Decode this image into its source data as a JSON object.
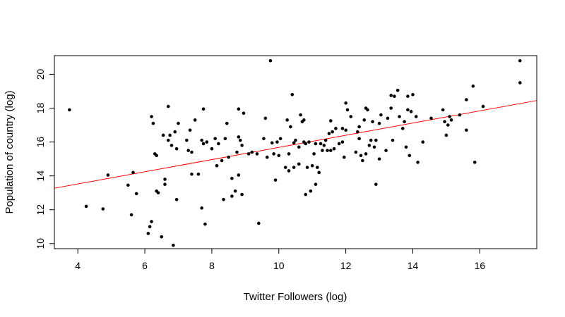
{
  "chart_data": {
    "type": "scatter",
    "title": "",
    "xlabel": "Twitter Followers (log)",
    "ylabel": "Population of country (log)",
    "xlim": [
      3.3,
      17.7
    ],
    "ylim": [
      9.7,
      21.1
    ],
    "xticks": [
      4,
      6,
      8,
      10,
      12,
      14,
      16
    ],
    "yticks": [
      10,
      12,
      14,
      16,
      18,
      20
    ],
    "grid": false,
    "point_color": "#000000",
    "line_color": "#ff0000",
    "regression_line": {
      "x": [
        3.3,
        17.7
      ],
      "y": [
        13.27,
        18.45
      ]
    },
    "series": [
      {
        "points": [
          [
            3.75,
            17.9
          ],
          [
            4.25,
            12.2
          ],
          [
            4.75,
            12.05
          ],
          [
            4.9,
            14.05
          ],
          [
            5.5,
            13.45
          ],
          [
            5.6,
            11.7
          ],
          [
            5.65,
            14.2
          ],
          [
            5.75,
            12.95
          ],
          [
            6.1,
            10.6
          ],
          [
            6.15,
            11.0
          ],
          [
            6.2,
            17.5
          ],
          [
            6.2,
            11.3
          ],
          [
            6.25,
            17.1
          ],
          [
            6.3,
            15.3
          ],
          [
            6.35,
            15.2
          ],
          [
            6.35,
            13.1
          ],
          [
            6.4,
            13.0
          ],
          [
            6.5,
            10.4
          ],
          [
            6.55,
            16.4
          ],
          [
            6.6,
            13.8
          ],
          [
            6.6,
            13.5
          ],
          [
            6.7,
            18.1
          ],
          [
            6.7,
            16.1
          ],
          [
            6.75,
            16.4
          ],
          [
            6.8,
            15.8
          ],
          [
            6.85,
            9.9
          ],
          [
            6.9,
            16.6
          ],
          [
            6.95,
            15.6
          ],
          [
            6.95,
            12.6
          ],
          [
            7.0,
            17.1
          ],
          [
            7.25,
            16.1
          ],
          [
            7.3,
            15.5
          ],
          [
            7.35,
            16.7
          ],
          [
            7.4,
            15.4
          ],
          [
            7.4,
            14.1
          ],
          [
            7.5,
            17.3
          ],
          [
            7.6,
            14.1
          ],
          [
            7.7,
            16.1
          ],
          [
            7.7,
            12.1
          ],
          [
            7.75,
            15.9
          ],
          [
            7.75,
            17.95
          ],
          [
            7.8,
            11.15
          ],
          [
            7.85,
            16.0
          ],
          [
            8.0,
            15.6
          ],
          [
            8.1,
            16.2
          ],
          [
            8.15,
            14.6
          ],
          [
            8.2,
            15.9
          ],
          [
            8.3,
            14.9
          ],
          [
            8.35,
            12.6
          ],
          [
            8.4,
            16.2
          ],
          [
            8.45,
            17.1
          ],
          [
            8.5,
            15.1
          ],
          [
            8.6,
            13.85
          ],
          [
            8.6,
            12.8
          ],
          [
            8.7,
            13.1
          ],
          [
            8.75,
            15.4
          ],
          [
            8.8,
            14.05
          ],
          [
            8.8,
            16.3
          ],
          [
            8.8,
            17.95
          ],
          [
            8.85,
            16.1
          ],
          [
            8.9,
            12.9
          ],
          [
            8.9,
            15.8
          ],
          [
            8.95,
            17.7
          ],
          [
            9.1,
            15.3
          ],
          [
            9.2,
            15.4
          ],
          [
            9.35,
            15.3
          ],
          [
            9.4,
            11.2
          ],
          [
            9.55,
            16.2
          ],
          [
            9.6,
            17.4
          ],
          [
            9.65,
            15.1
          ],
          [
            9.75,
            20.8
          ],
          [
            9.8,
            15.95
          ],
          [
            9.85,
            15.3
          ],
          [
            9.9,
            13.75
          ],
          [
            9.95,
            16.0
          ],
          [
            10.0,
            15.2
          ],
          [
            10.05,
            16.2
          ],
          [
            10.2,
            14.5
          ],
          [
            10.25,
            17.3
          ],
          [
            10.3,
            15.3
          ],
          [
            10.3,
            14.3
          ],
          [
            10.35,
            16.9
          ],
          [
            10.4,
            18.8
          ],
          [
            10.45,
            15.95
          ],
          [
            10.45,
            14.5
          ],
          [
            10.5,
            16.1
          ],
          [
            10.6,
            15.7
          ],
          [
            10.6,
            14.7
          ],
          [
            10.65,
            17.6
          ],
          [
            10.7,
            17.2
          ],
          [
            10.75,
            17.3
          ],
          [
            10.75,
            16.0
          ],
          [
            10.8,
            15.9
          ],
          [
            10.8,
            12.9
          ],
          [
            10.85,
            14.5
          ],
          [
            10.9,
            16.0
          ],
          [
            10.95,
            13.1
          ],
          [
            11.0,
            14.6
          ],
          [
            11.05,
            15.3
          ],
          [
            11.1,
            13.5
          ],
          [
            11.1,
            15.9
          ],
          [
            11.15,
            14.5
          ],
          [
            11.2,
            14.2
          ],
          [
            11.25,
            15.9
          ],
          [
            11.3,
            15.5
          ],
          [
            11.35,
            15.8
          ],
          [
            11.4,
            16.1
          ],
          [
            11.45,
            15.5
          ],
          [
            11.5,
            16.5
          ],
          [
            11.55,
            17.25
          ],
          [
            11.55,
            15.5
          ],
          [
            11.6,
            16.6
          ],
          [
            11.65,
            15.6
          ],
          [
            11.7,
            16.8
          ],
          [
            11.8,
            15.9
          ],
          [
            11.9,
            16.8
          ],
          [
            11.9,
            16.0
          ],
          [
            11.95,
            15.1
          ],
          [
            12.0,
            16.7
          ],
          [
            12.0,
            18.3
          ],
          [
            12.05,
            17.9
          ],
          [
            12.15,
            17.5
          ],
          [
            12.3,
            15.4
          ],
          [
            12.35,
            16.6
          ],
          [
            12.4,
            16.9
          ],
          [
            12.4,
            16.2
          ],
          [
            12.45,
            15.2
          ],
          [
            12.5,
            14.9
          ],
          [
            12.55,
            17.3
          ],
          [
            12.6,
            15.3
          ],
          [
            12.6,
            18.0
          ],
          [
            12.65,
            17.9
          ],
          [
            12.7,
            15.8
          ],
          [
            12.75,
            16.1
          ],
          [
            12.8,
            17.2
          ],
          [
            12.85,
            15.7
          ],
          [
            12.9,
            16.1
          ],
          [
            12.9,
            13.5
          ],
          [
            13.0,
            17.1
          ],
          [
            13.0,
            15.0
          ],
          [
            13.05,
            17.6
          ],
          [
            13.2,
            15.5
          ],
          [
            13.25,
            17.4
          ],
          [
            13.35,
            18.75
          ],
          [
            13.35,
            18.0
          ],
          [
            13.4,
            16.1
          ],
          [
            13.45,
            18.7
          ],
          [
            13.55,
            19.05
          ],
          [
            13.6,
            17.5
          ],
          [
            13.7,
            16.8
          ],
          [
            13.75,
            17.2
          ],
          [
            13.8,
            15.7
          ],
          [
            13.85,
            18.7
          ],
          [
            13.85,
            17.9
          ],
          [
            13.9,
            15.2
          ],
          [
            13.95,
            17.8
          ],
          [
            14.0,
            18.8
          ],
          [
            14.1,
            17.5
          ],
          [
            14.15,
            14.8
          ],
          [
            14.3,
            16.0
          ],
          [
            14.55,
            17.4
          ],
          [
            14.9,
            17.9
          ],
          [
            14.95,
            17.2
          ],
          [
            15.0,
            16.4
          ],
          [
            15.05,
            17.0
          ],
          [
            15.1,
            17.5
          ],
          [
            15.15,
            17.3
          ],
          [
            15.4,
            17.6
          ],
          [
            15.6,
            16.7
          ],
          [
            15.6,
            18.5
          ],
          [
            15.8,
            19.3
          ],
          [
            15.85,
            14.8
          ],
          [
            16.1,
            18.1
          ],
          [
            17.2,
            20.8
          ],
          [
            17.2,
            19.5
          ]
        ]
      }
    ]
  }
}
